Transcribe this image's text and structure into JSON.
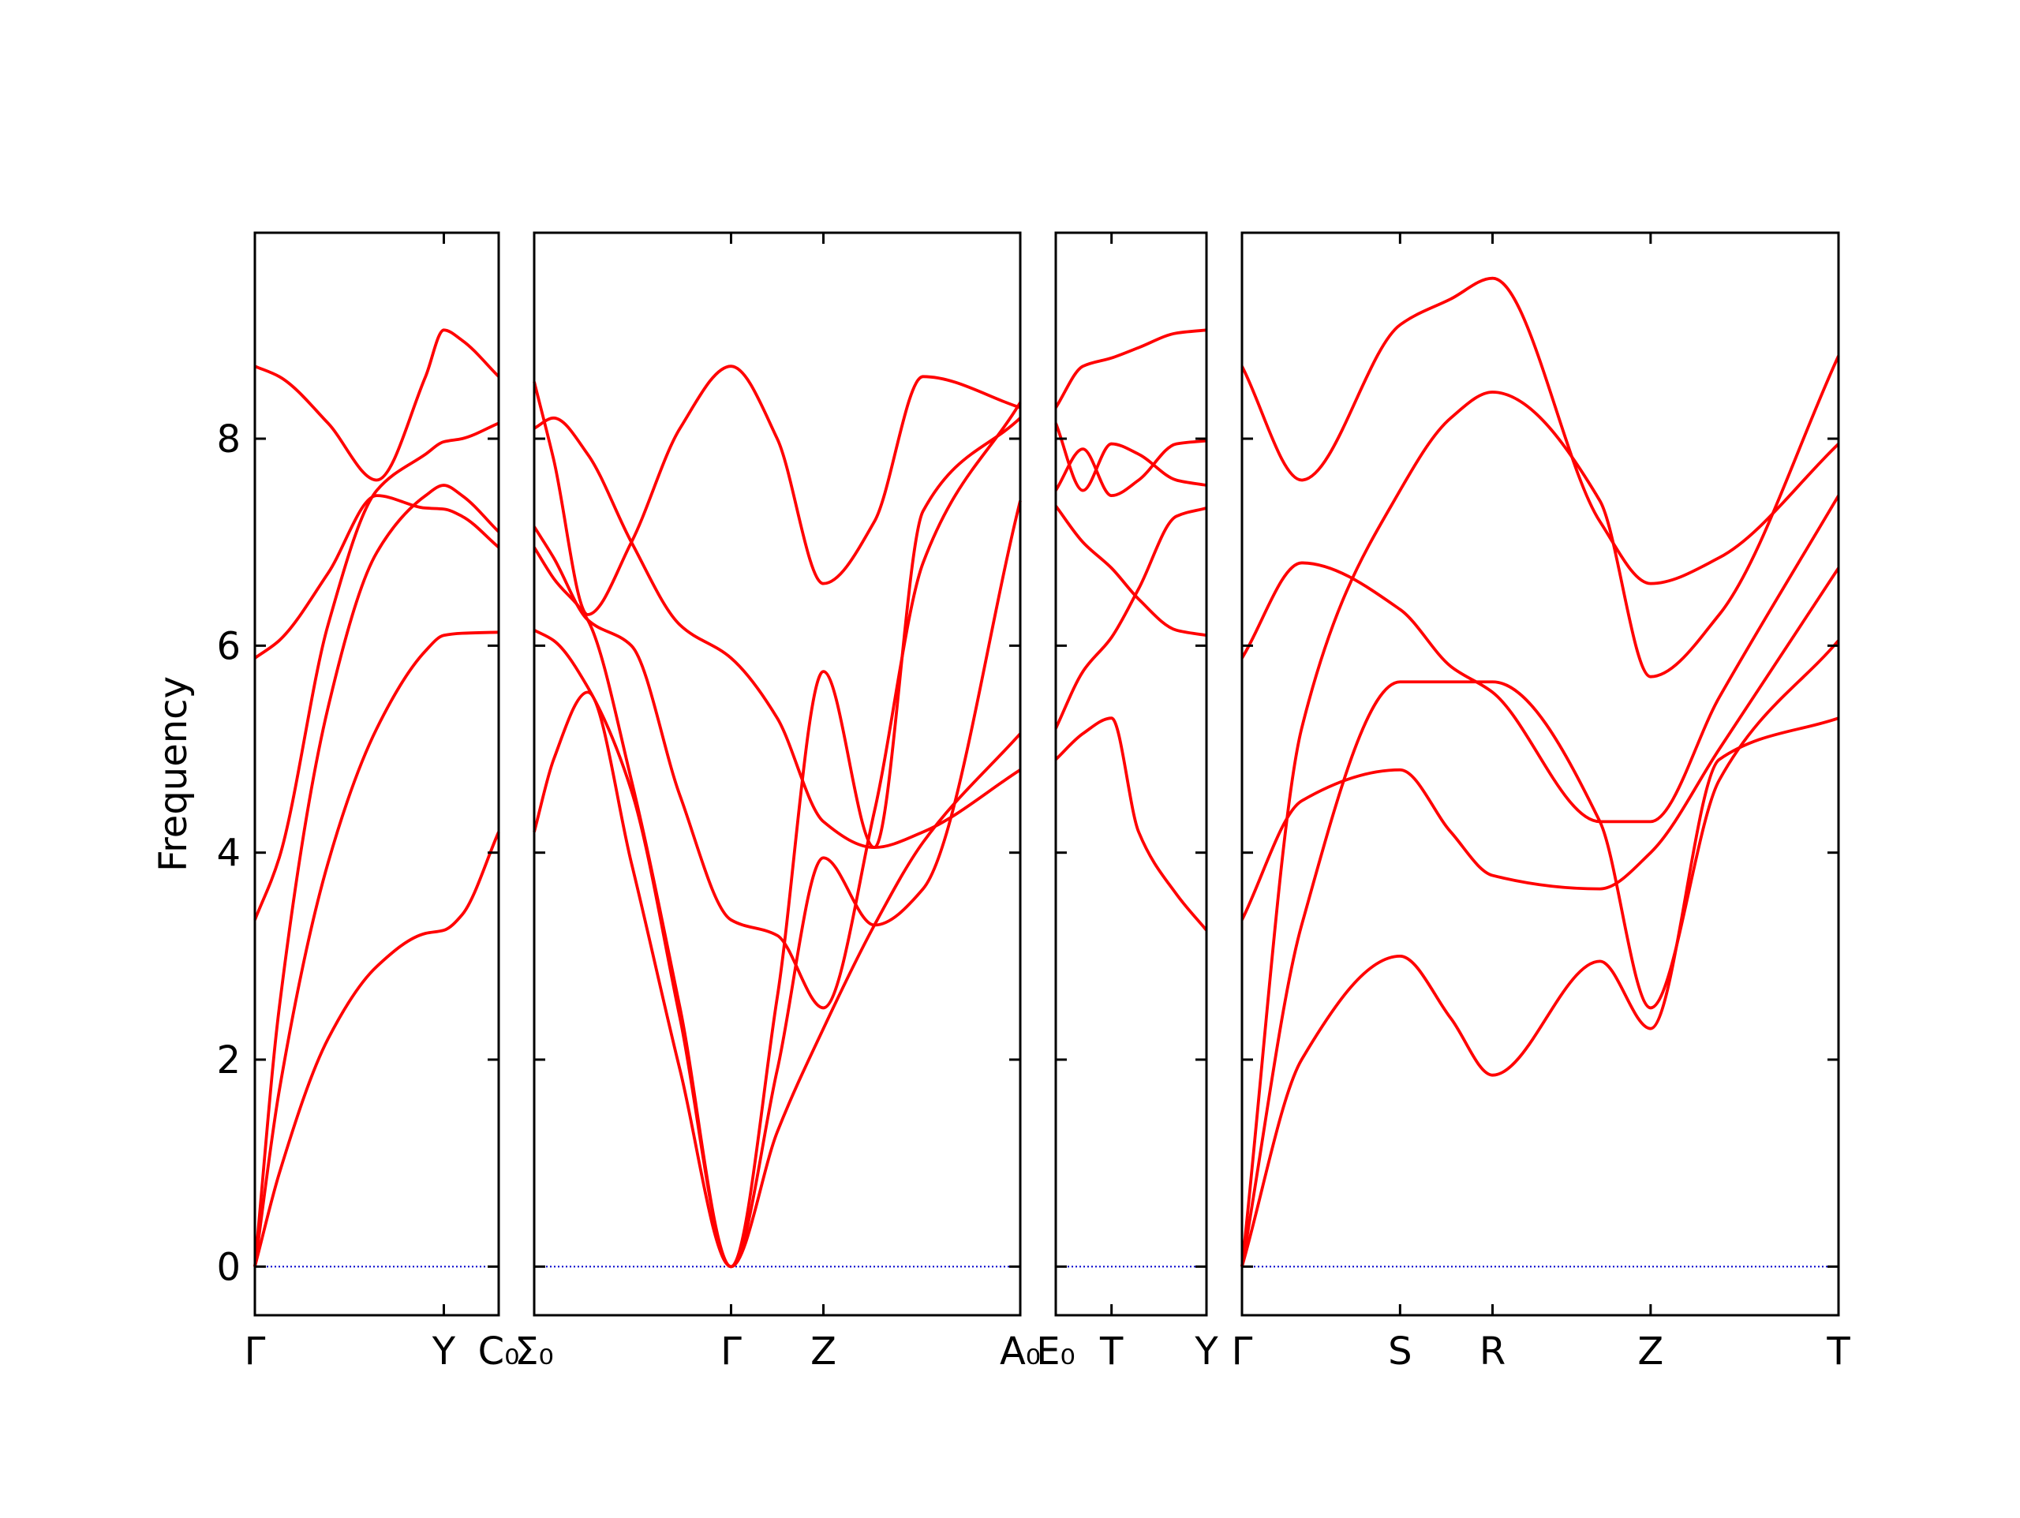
{
  "chart_data": {
    "type": "line",
    "ylabel": "Frequency",
    "ylim": [
      -0.47,
      9.99
    ],
    "yticks": [
      0,
      2,
      4,
      6,
      8
    ],
    "grid": false,
    "band_color": "#ff0000",
    "zero_line_color": "#0000cc",
    "panels": [
      {
        "xlim": [
          0,
          1
        ],
        "ticks": [
          {
            "x": 0,
            "label": "Γ"
          },
          {
            "x": 0.775,
            "label": "Y"
          },
          {
            "x": 1,
            "label": "C₀"
          }
        ],
        "bands": [
          {
            "x": [
              0,
              0.1,
              0.3,
              0.5,
              0.7,
              0.775,
              0.85,
              1
            ],
            "y": [
              0,
              0.9,
              2.2,
              2.9,
              3.22,
              3.25,
              3.4,
              4.2
            ]
          },
          {
            "x": [
              0,
              0.1,
              0.3,
              0.5,
              0.7,
              0.775,
              0.85,
              1
            ],
            "y": [
              0,
              1.7,
              3.9,
              5.2,
              5.95,
              6.1,
              6.12,
              6.13
            ]
          },
          {
            "x": [
              0,
              0.1,
              0.3,
              0.5,
              0.7,
              0.775,
              0.85,
              1
            ],
            "y": [
              0,
              2.5,
              5.4,
              6.9,
              7.45,
              7.55,
              7.45,
              7.1
            ]
          },
          {
            "x": [
              0,
              0.1,
              0.3,
              0.5,
              0.7,
              0.775,
              0.85,
              1
            ],
            "y": [
              3.35,
              3.95,
              6.2,
              7.5,
              7.85,
              7.97,
              8.0,
              8.15
            ]
          },
          {
            "x": [
              0,
              0.1,
              0.3,
              0.5,
              0.7,
              0.775,
              0.85,
              1
            ],
            "y": [
              5.88,
              6.05,
              6.7,
              7.45,
              7.33,
              7.32,
              7.25,
              6.95
            ]
          },
          {
            "x": [
              0,
              0.1,
              0.3,
              0.5,
              0.7,
              0.775,
              0.85,
              1
            ],
            "y": [
              8.7,
              8.6,
              8.15,
              7.6,
              8.6,
              9.05,
              8.95,
              8.6
            ]
          }
        ]
      },
      {
        "xlim": [
          0,
          1
        ],
        "ticks": [
          {
            "x": 0,
            "label": "Σ₀"
          },
          {
            "x": 0.405,
            "label": "Γ"
          },
          {
            "x": 0.595,
            "label": "Z"
          },
          {
            "x": 1,
            "label": "A₀"
          }
        ],
        "bands": [
          {
            "x": [
              0,
              0.04,
              0.11,
              0.2,
              0.3,
              0.405,
              0.5,
              0.595,
              0.7,
              0.8,
              1
            ],
            "y": [
              4.2,
              4.9,
              5.55,
              3.9,
              1.9,
              0,
              1.3,
              2.3,
              3.3,
              4.1,
              5.15
            ]
          },
          {
            "x": [
              0,
              0.04,
              0.11,
              0.2,
              0.3,
              0.405,
              0.5,
              0.595,
              0.7,
              0.8,
              1
            ],
            "y": [
              6.15,
              6.05,
              5.6,
              4.6,
              2.4,
              0,
              1.9,
              3.95,
              3.3,
              3.65,
              7.4
            ]
          },
          {
            "x": [
              0,
              0.04,
              0.11,
              0.2,
              0.3,
              0.405,
              0.5,
              0.595,
              0.7,
              0.8,
              1
            ],
            "y": [
              6.95,
              6.65,
              6.25,
              4.7,
              2.5,
              0,
              2.6,
              5.75,
              4.05,
              4.2,
              4.8
            ]
          },
          {
            "x": [
              0,
              0.04,
              0.11,
              0.2,
              0.3,
              0.405,
              0.5,
              0.595,
              0.7,
              0.8,
              1
            ],
            "y": [
              7.15,
              6.85,
              6.25,
              6.0,
              4.55,
              3.35,
              3.2,
              2.5,
              4.4,
              6.8,
              8.35
            ]
          },
          {
            "x": [
              0,
              0.04,
              0.11,
              0.2,
              0.3,
              0.405,
              0.5,
              0.595,
              0.7,
              0.8,
              1
            ],
            "y": [
              8.1,
              8.2,
              7.85,
              7.0,
              6.2,
              5.88,
              5.3,
              4.3,
              4.05,
              7.3,
              8.2
            ]
          },
          {
            "x": [
              0,
              0.04,
              0.11,
              0.2,
              0.3,
              0.405,
              0.5,
              0.595,
              0.7,
              0.8,
              1
            ],
            "y": [
              8.55,
              7.8,
              6.3,
              7.0,
              8.1,
              8.7,
              8.0,
              6.6,
              7.2,
              8.6,
              8.3
            ]
          }
        ]
      },
      {
        "xlim": [
          0,
          1
        ],
        "ticks": [
          {
            "x": 0,
            "label": "E₀"
          },
          {
            "x": 0.37,
            "label": "T"
          },
          {
            "x": 1,
            "label": "Y"
          }
        ],
        "bands": [
          {
            "x": [
              0,
              0.18,
              0.37,
              0.55,
              0.8,
              1
            ],
            "y": [
              4.9,
              5.15,
              5.3,
              4.2,
              3.6,
              3.25
            ]
          },
          {
            "x": [
              0,
              0.18,
              0.37,
              0.55,
              0.8,
              1
            ],
            "y": [
              5.2,
              5.75,
              6.08,
              6.55,
              7.25,
              7.33
            ]
          },
          {
            "x": [
              0,
              0.18,
              0.37,
              0.55,
              0.8,
              1
            ],
            "y": [
              7.35,
              7.0,
              6.75,
              6.45,
              6.15,
              6.1
            ]
          },
          {
            "x": [
              0,
              0.18,
              0.37,
              0.55,
              0.8,
              1
            ],
            "y": [
              7.5,
              7.9,
              7.45,
              7.6,
              7.95,
              7.98
            ]
          },
          {
            "x": [
              0,
              0.18,
              0.37,
              0.55,
              0.8,
              1
            ],
            "y": [
              8.15,
              7.5,
              7.95,
              7.85,
              7.6,
              7.55
            ]
          },
          {
            "x": [
              0,
              0.18,
              0.37,
              0.55,
              0.8,
              1
            ],
            "y": [
              8.3,
              8.7,
              8.78,
              8.88,
              9.02,
              9.05
            ]
          }
        ]
      },
      {
        "xlim": [
          0,
          1
        ],
        "ticks": [
          {
            "x": 0,
            "label": "Γ"
          },
          {
            "x": 0.265,
            "label": "S"
          },
          {
            "x": 0.42,
            "label": "R"
          },
          {
            "x": 0.685,
            "label": "Z"
          },
          {
            "x": 1,
            "label": "T"
          }
        ],
        "bands": [
          {
            "x": [
              0,
              0.1,
              0.265,
              0.35,
              0.42,
              0.6,
              0.685,
              0.8,
              1
            ],
            "y": [
              0,
              2.0,
              3.0,
              2.4,
              1.85,
              2.95,
              2.3,
              4.9,
              5.3
            ]
          },
          {
            "x": [
              0,
              0.1,
              0.265,
              0.35,
              0.42,
              0.6,
              0.685,
              0.8,
              1
            ],
            "y": [
              0,
              3.3,
              5.65,
              5.65,
              5.65,
              4.3,
              2.5,
              4.7,
              6.05
            ]
          },
          {
            "x": [
              0,
              0.1,
              0.265,
              0.35,
              0.42,
              0.6,
              0.685,
              0.8,
              1
            ],
            "y": [
              3.35,
              4.5,
              4.8,
              4.2,
              3.78,
              3.65,
              4.0,
              5.0,
              6.75
            ]
          },
          {
            "x": [
              0,
              0.1,
              0.265,
              0.35,
              0.42,
              0.6,
              0.685,
              0.8,
              1
            ],
            "y": [
              0,
              5.2,
              7.5,
              8.2,
              8.45,
              7.4,
              5.7,
              6.3,
              8.8
            ]
          },
          {
            "x": [
              0,
              0.1,
              0.265,
              0.35,
              0.42,
              0.6,
              0.685,
              0.8,
              1
            ],
            "y": [
              5.88,
              6.8,
              6.35,
              5.8,
              5.55,
              4.3,
              4.3,
              5.5,
              7.45
            ]
          },
          {
            "x": [
              0,
              0.1,
              0.265,
              0.35,
              0.42,
              0.6,
              0.685,
              0.8,
              1
            ],
            "y": [
              8.7,
              7.6,
              9.1,
              9.35,
              9.55,
              7.2,
              6.6,
              6.85,
              7.95
            ]
          }
        ]
      }
    ]
  }
}
